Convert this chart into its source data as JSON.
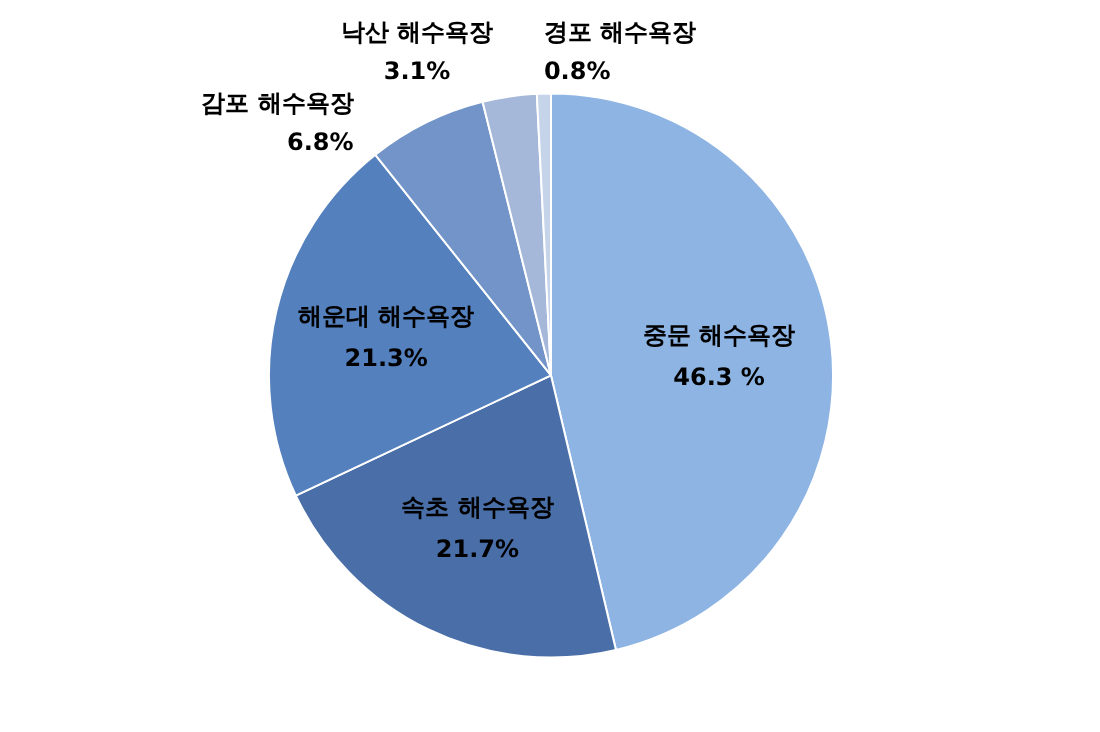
{
  "chart_data": {
    "type": "pie",
    "categories": [
      "중문 해수욕장",
      "속초 해수욕장",
      "해운대 해수욕장",
      "감포 해수욕장",
      "낙산 해수욕장",
      "경포 해수욕장"
    ],
    "values": [
      46.3,
      21.7,
      21.3,
      6.8,
      3.1,
      0.8
    ],
    "value_labels": [
      "46.3 %",
      "21.7%",
      "21.3%",
      "6.8%",
      "3.1%",
      "0.8%"
    ],
    "colors": [
      "#8eb4e3",
      "#4a6fa8",
      "#5480be",
      "#7394c9",
      "#a5b8da",
      "#c6d4ea"
    ]
  }
}
